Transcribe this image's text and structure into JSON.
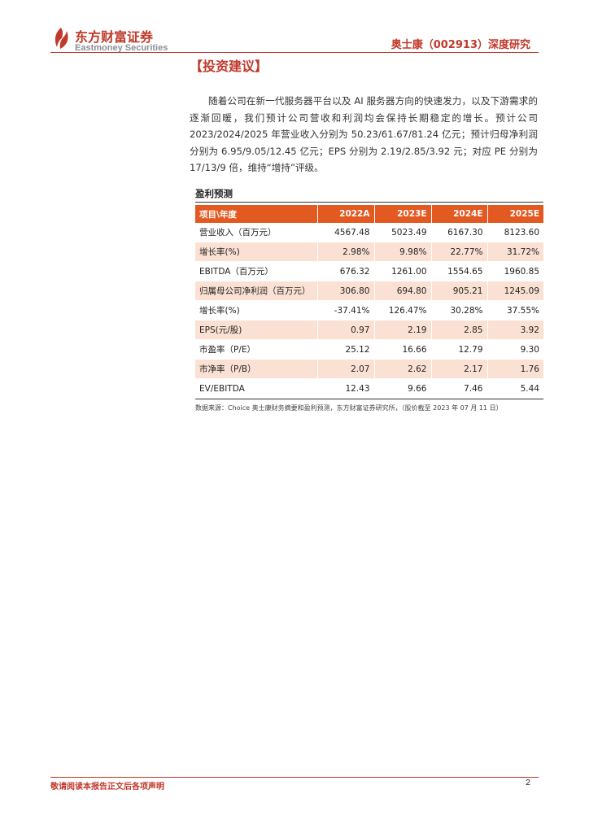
{
  "header": {
    "logo_cn": "东方财富证券",
    "logo_en": "Eastmoney Securities",
    "report_tag": "奥士康（002913）深度研究",
    "accent_color": "#c0392b"
  },
  "section": {
    "title": "【投资建议】",
    "paragraph": "随着公司在新一代服务器平台以及 AI 服务器方向的快速发力，以及下游需求的逐渐回暖，我们预计公司营收和利润均会保持长期稳定的增长。预计公司 2023/2024/2025 年营业收入分别为 50.23/61.67/81.24 亿元；预计归母净利润分别为 6.95/9.05/12.45 亿元；EPS 分别为 2.19/2.85/3.92 元；对应 PE 分别为 17/13/9 倍，维持“增持”评级。"
  },
  "table": {
    "title": "盈利预测",
    "header_color": "#e25a22",
    "shade_color": "#fbe1d3",
    "columns": [
      "项目\\年度",
      "2022A",
      "2023E",
      "2024E",
      "2025E"
    ],
    "rows": [
      {
        "label": "营业收入（百万元）",
        "values": [
          "4567.48",
          "5023.49",
          "6167.30",
          "8123.60"
        ]
      },
      {
        "label": "增长率(%)",
        "values": [
          "2.98%",
          "9.98%",
          "22.77%",
          "31.72%"
        ]
      },
      {
        "label": "EBITDA（百万元）",
        "values": [
          "676.32",
          "1261.00",
          "1554.65",
          "1960.85"
        ]
      },
      {
        "label": "归属母公司净利润（百万元）",
        "values": [
          "306.80",
          "694.80",
          "905.21",
          "1245.09"
        ]
      },
      {
        "label": "增长率(%)",
        "values": [
          "-37.41%",
          "126.47%",
          "30.28%",
          "37.55%"
        ]
      },
      {
        "label": "EPS(元/股)",
        "values": [
          "0.97",
          "2.19",
          "2.85",
          "3.92"
        ]
      },
      {
        "label": "市盈率（P/E）",
        "values": [
          "25.12",
          "16.66",
          "12.79",
          "9.30"
        ]
      },
      {
        "label": "市净率（P/B）",
        "values": [
          "2.07",
          "2.62",
          "2.17",
          "1.76"
        ]
      },
      {
        "label": "EV/EBITDA",
        "values": [
          "12.43",
          "9.66",
          "7.46",
          "5.44"
        ]
      }
    ],
    "source": "数据来源：Choice 奥士康财务摘要和盈利预测，东方财富证券研究所，（股价截至 2023 年 07 月 11 日）"
  },
  "footer": {
    "disclaimer": "敬请阅读本报告正文后各项声明",
    "page_number": "2"
  }
}
